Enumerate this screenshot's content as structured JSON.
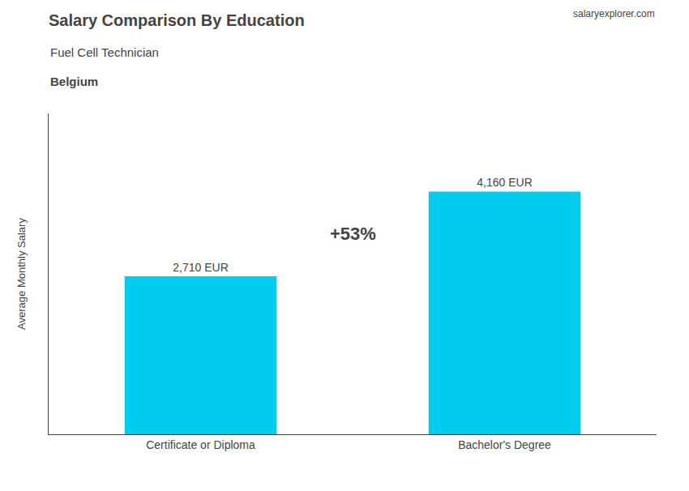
{
  "chart_data": {
    "type": "bar",
    "title": "Salary Comparison By Education",
    "subtitle": "Fuel Cell Technician",
    "annotations": [
      "Belgium",
      "salaryexplorer.com",
      "+53%"
    ],
    "ylabel": "Average Monthly Salary",
    "categories": [
      "Certificate or Diploma",
      "Bachelor's Degree"
    ],
    "values": [
      2710,
      4160
    ],
    "value_labels": [
      "2,710 EUR",
      "4,160 EUR"
    ],
    "data_labels": true,
    "color": "#00CCEE",
    "ylim": [
      0,
      5500
    ],
    "tick_labels": "x",
    "grid": false
  }
}
